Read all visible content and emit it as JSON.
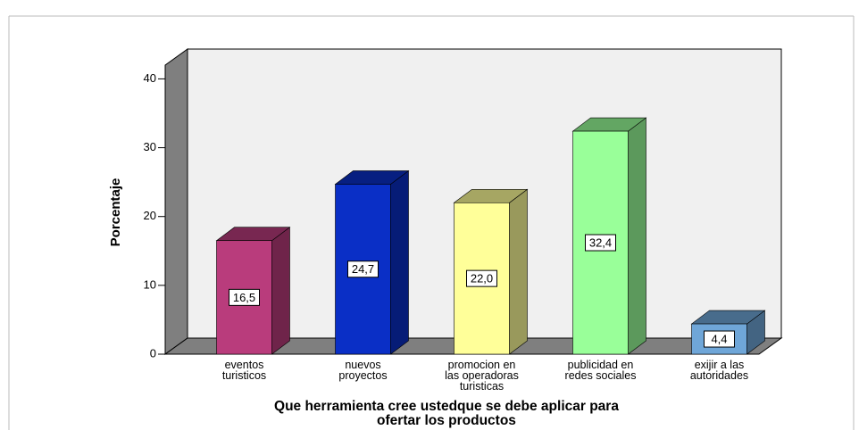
{
  "chart_data": {
    "type": "bar3d",
    "categories": [
      "eventos\nturisticos",
      "nuevos\nproyectos",
      "promocion en\nlas operadoras\nturisticas",
      "publicidad en\nredes sociales",
      "exijir a las\nautoridades"
    ],
    "values": [
      16.5,
      24.7,
      22.0,
      32.4,
      4.4
    ],
    "value_labels": [
      "16,5",
      "24,7",
      "22,0",
      "32,4",
      "4,4"
    ],
    "colors": [
      "#b93c7c",
      "#0a2fc6",
      "#ffff99",
      "#99ff99",
      "#6fa6d8"
    ],
    "y_label": "Porcentaje",
    "x_label": "Que herramienta cree ustedque se debe aplicar para\nofertar los productos",
    "ylim": [
      0,
      42
    ],
    "yticks": [
      0,
      10,
      20,
      30,
      40
    ]
  }
}
